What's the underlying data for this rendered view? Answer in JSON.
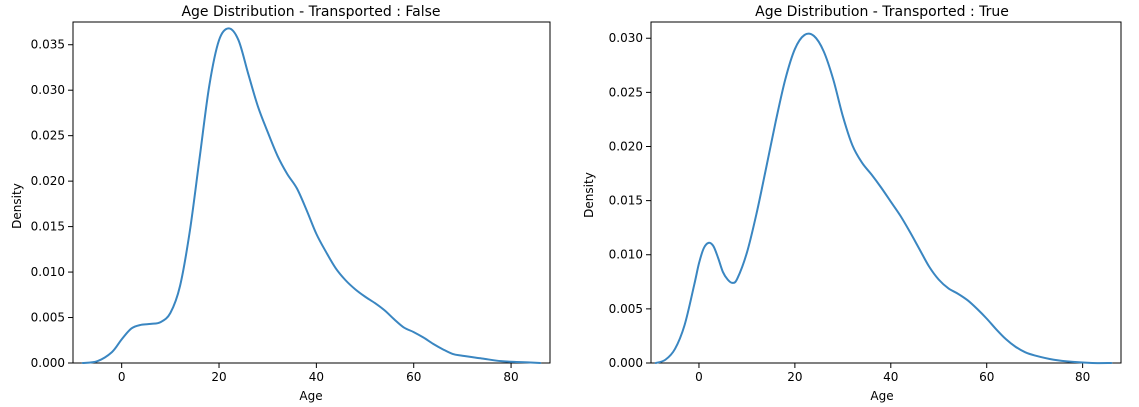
{
  "chart_data": [
    {
      "type": "line",
      "title": "Age Distribution - Transported : False",
      "xlabel": "Age",
      "ylabel": "Density",
      "xlim": [
        -10,
        88
      ],
      "ylim": [
        0,
        0.0375
      ],
      "xticks": [
        0,
        20,
        40,
        60,
        80
      ],
      "yticks": [
        0.0,
        0.005,
        0.01,
        0.015,
        0.02,
        0.025,
        0.03,
        0.035
      ],
      "ytick_labels": [
        "0.000",
        "0.005",
        "0.010",
        "0.015",
        "0.020",
        "0.025",
        "0.030",
        "0.035"
      ],
      "grid": false,
      "series": [
        {
          "color": "#3a86c1",
          "x": [
            -8,
            -5,
            -2,
            0,
            2,
            4,
            6,
            8,
            10,
            12,
            14,
            16,
            18,
            20,
            22,
            24,
            26,
            28,
            30,
            32,
            34,
            36,
            38,
            40,
            42,
            44,
            46,
            48,
            50,
            52,
            54,
            56,
            58,
            60,
            62,
            64,
            66,
            68,
            70,
            74,
            78,
            82,
            86
          ],
          "y": [
            0.0,
            0.0002,
            0.0012,
            0.0026,
            0.0038,
            0.0042,
            0.0043,
            0.0045,
            0.0055,
            0.0085,
            0.0145,
            0.0225,
            0.0305,
            0.0355,
            0.0368,
            0.0355,
            0.0318,
            0.0282,
            0.0254,
            0.0228,
            0.0208,
            0.0192,
            0.0168,
            0.0142,
            0.0122,
            0.0104,
            0.0091,
            0.0081,
            0.0073,
            0.0066,
            0.0058,
            0.0048,
            0.0039,
            0.0034,
            0.0028,
            0.0021,
            0.0015,
            0.001,
            0.0008,
            0.0005,
            0.0002,
            0.0001,
            0.0
          ]
        }
      ]
    },
    {
      "type": "line",
      "title": "Age Distribution - Transported : True",
      "xlabel": "Age",
      "ylabel": "Density",
      "xlim": [
        -10,
        88
      ],
      "ylim": [
        0,
        0.0315
      ],
      "xticks": [
        0,
        20,
        40,
        60,
        80
      ],
      "yticks": [
        0.0,
        0.005,
        0.01,
        0.015,
        0.02,
        0.025,
        0.03
      ],
      "ytick_labels": [
        "0.000",
        "0.005",
        "0.010",
        "0.015",
        "0.020",
        "0.025",
        "0.030"
      ],
      "grid": false,
      "series": [
        {
          "color": "#3a86c1",
          "x": [
            -9,
            -7,
            -5,
            -3,
            -1,
            0,
            1,
            2,
            3,
            4,
            5,
            6,
            7,
            8,
            10,
            12,
            14,
            16,
            18,
            20,
            22,
            24,
            26,
            28,
            30,
            32,
            34,
            36,
            38,
            40,
            42,
            44,
            46,
            48,
            50,
            52,
            54,
            56,
            58,
            60,
            62,
            64,
            66,
            68,
            70,
            74,
            78,
            82,
            86
          ],
          "y": [
            0.0,
            0.0003,
            0.0013,
            0.0035,
            0.0072,
            0.0092,
            0.0106,
            0.0111,
            0.0108,
            0.0097,
            0.0084,
            0.0077,
            0.0074,
            0.0078,
            0.0102,
            0.0138,
            0.018,
            0.0223,
            0.0262,
            0.029,
            0.0303,
            0.0302,
            0.0288,
            0.0262,
            0.0228,
            0.0201,
            0.0185,
            0.0174,
            0.0162,
            0.0149,
            0.0136,
            0.0121,
            0.0105,
            0.0089,
            0.0077,
            0.0069,
            0.0064,
            0.0058,
            0.005,
            0.0041,
            0.0031,
            0.0022,
            0.0015,
            0.001,
            0.0007,
            0.0003,
            0.0001,
            0.0,
            0.0
          ]
        }
      ]
    }
  ]
}
